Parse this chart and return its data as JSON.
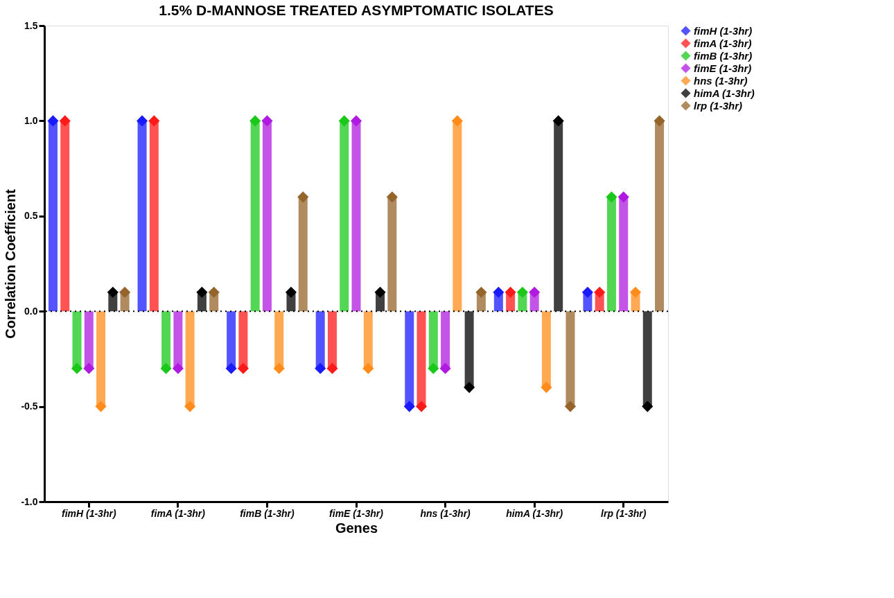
{
  "chart_data": {
    "type": "lollipop",
    "title": "1.5% D-MANNOSE TREATED ASYMPTOMATIC ISOLATES",
    "xlabel": "Genes",
    "ylabel": "Correlation Coefficient",
    "categories": [
      "fimH (1-3hr)",
      "fimA (1-3hr)",
      "fimB (1-3hr)",
      "fimE (1-3hr)",
      "hns (1-3hr)",
      "himA (1-3hr)",
      "lrp (1-3hr)"
    ],
    "series": [
      {
        "name": "fimH (1-3hr)",
        "color": "#1a1aff",
        "values": [
          1,
          1,
          -0.3,
          -0.3,
          -0.5,
          0.1,
          0.1
        ]
      },
      {
        "name": "fimA (1-3hr)",
        "color": "#ff1a1a",
        "values": [
          1,
          1,
          -0.3,
          -0.3,
          -0.5,
          0.1,
          0.1
        ]
      },
      {
        "name": "fimB (1-3hr)",
        "color": "#1ac81a",
        "values": [
          -0.3,
          -0.3,
          1,
          1,
          -0.3,
          0.1,
          0.6
        ]
      },
      {
        "name": "fimE (1-3hr)",
        "color": "#b01ae0",
        "values": [
          -0.3,
          -0.3,
          1,
          1,
          -0.3,
          0.1,
          0.6
        ]
      },
      {
        "name": "hns (1-3hr)",
        "color": "#ff8c1a",
        "values": [
          -0.5,
          -0.5,
          -0.3,
          -0.3,
          1,
          -0.4,
          0.1
        ]
      },
      {
        "name": "himA (1-3hr)",
        "color": "#000000",
        "values": [
          0.1,
          0.1,
          0.1,
          0.1,
          -0.4,
          1,
          -0.5
        ]
      },
      {
        "name": "lrp (1-3hr)",
        "color": "#94642a",
        "values": [
          0.1,
          0.1,
          0.6,
          0.6,
          0.1,
          -0.5,
          1
        ]
      }
    ],
    "ylim": [
      -1,
      1.5
    ],
    "yticks": [
      {
        "value": -1,
        "label": "-1.0"
      },
      -0.5,
      {
        "value": 0,
        "label": "0.0"
      },
      0.5,
      {
        "value": 1,
        "label": "1.0"
      },
      1.5
    ],
    "marker": "diamond",
    "grid": false,
    "legend": "top right",
    "ref_lines": [
      {
        "axis": "y",
        "value": 0,
        "line_style": "dotted",
        "color": "#000000"
      }
    ]
  }
}
